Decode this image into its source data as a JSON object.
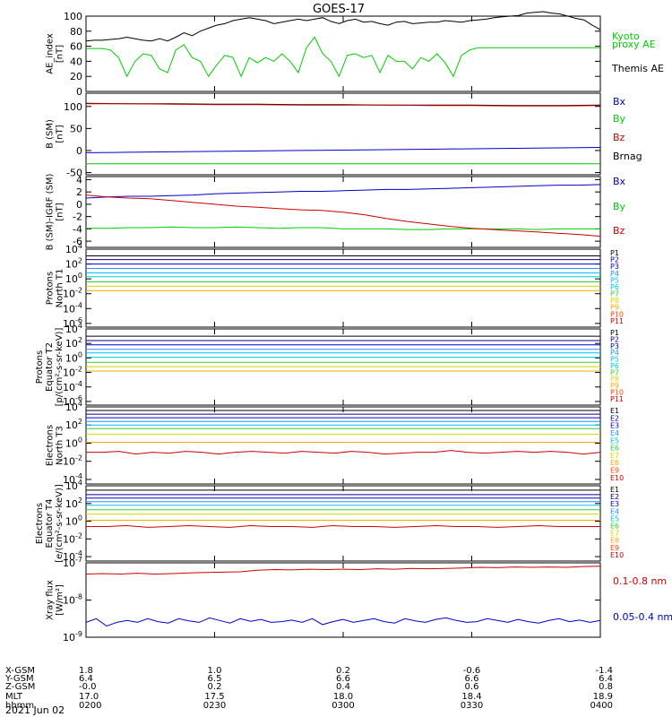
{
  "title": "GOES-17",
  "date": "2021 Jun 02",
  "colors": {
    "black": "#000000",
    "blue": "#0000cc",
    "green": "#00cc00",
    "red": "#cc0000",
    "x": [
      "#000000",
      "#00008b",
      "#0000cd",
      "#1e90ff",
      "#00bfff",
      "#00ced1",
      "#32cd32",
      "#d4d400",
      "#ffa500",
      "#ff4500",
      "#cc0000"
    ]
  },
  "chart_data": [
    {
      "type": "line",
      "panel": "ae",
      "ylabel": [
        "AE_index",
        "[nT]"
      ],
      "ylim": [
        0,
        100
      ],
      "yticks": [
        "100",
        "80",
        "60",
        "40",
        "20",
        "0"
      ],
      "ytick_values": [
        100,
        80,
        60,
        40,
        20,
        0
      ],
      "legend": [
        "Kyoto",
        "proxy AE",
        "Themis AE"
      ],
      "series": [
        {
          "name": "Kyoto proxy AE",
          "color": "green",
          "values": [
            57,
            57,
            57,
            55,
            45,
            20,
            40,
            50,
            48,
            30,
            25,
            55,
            62,
            45,
            40,
            20,
            35,
            48,
            45,
            20,
            45,
            38,
            45,
            40,
            50,
            40,
            25,
            58,
            72,
            50,
            40,
            20,
            48,
            50,
            45,
            48,
            25,
            48,
            40,
            40,
            30,
            45,
            40,
            50,
            38,
            20,
            48,
            55,
            58,
            58,
            58,
            58,
            58,
            58,
            58,
            58,
            58,
            58,
            58,
            58,
            58,
            58,
            58,
            58
          ]
        },
        {
          "name": "Themis AE",
          "color": "black",
          "values": [
            67,
            68,
            68,
            69,
            70,
            72,
            70,
            68,
            67,
            70,
            67,
            72,
            78,
            74,
            80,
            84,
            88,
            90,
            94,
            96,
            98,
            96,
            94,
            90,
            92,
            94,
            96,
            94,
            96,
            98,
            93,
            90,
            94,
            96,
            92,
            93,
            90,
            88,
            92,
            93,
            90,
            91,
            92,
            92,
            94,
            93,
            92,
            94,
            95,
            96,
            98,
            99,
            100,
            101,
            104,
            105,
            106,
            104,
            103,
            100,
            97,
            95,
            88,
            82
          ]
        }
      ]
    },
    {
      "type": "line",
      "panel": "b",
      "ylabel": [
        "B (SM)",
        "[nT]"
      ],
      "ylim": [
        -55,
        130
      ],
      "yticks": [
        "100",
        "50",
        "0",
        "-50"
      ],
      "ytick_values": [
        100,
        50,
        0,
        -50
      ],
      "legend": [
        "Bx",
        "By",
        "Bz",
        "Brnag"
      ],
      "series": [
        {
          "name": "Bmag",
          "color": "black",
          "values": [
            107,
            106,
            106,
            105,
            105,
            104,
            104,
            103,
            103,
            103,
            102,
            102,
            103
          ]
        },
        {
          "name": "Bz",
          "color": "red",
          "values": [
            106,
            106,
            105,
            104,
            104,
            103,
            103,
            103,
            102,
            102,
            101,
            101,
            102
          ]
        },
        {
          "name": "Bx",
          "color": "blue",
          "values": [
            -5,
            -4,
            -3,
            -2,
            -1,
            0,
            1,
            2,
            3,
            4,
            5,
            6,
            7
          ]
        },
        {
          "name": "By",
          "color": "green",
          "values": [
            -30,
            -30,
            -30,
            -30,
            -30,
            -30,
            -30,
            -30,
            -30,
            -30,
            -30,
            -30,
            -30
          ]
        }
      ]
    },
    {
      "type": "line",
      "panel": "db",
      "ylabel": [
        "B (SM)-IGRF (SM)",
        "[nT]"
      ],
      "ylim": [
        -7,
        4.5
      ],
      "yticks": [
        "4",
        "2",
        "0",
        "-2",
        "-4",
        "-6"
      ],
      "ytick_values": [
        4,
        2,
        0,
        -2,
        -4,
        -6
      ],
      "legend": [
        "Bx",
        "By",
        "Bz"
      ],
      "series": [
        {
          "name": "Bx",
          "color": "blue",
          "values": [
            1.0,
            1.2,
            1.3,
            1.3,
            1.4,
            1.5,
            1.7,
            1.8,
            1.9,
            2.0,
            2.1,
            2.1,
            2.2,
            2.3,
            2.4,
            2.4,
            2.5,
            2.6,
            2.7,
            2.8,
            2.9,
            3.0,
            3.1,
            3.1,
            3.2
          ]
        },
        {
          "name": "By",
          "color": "green",
          "values": [
            -3.9,
            -3.9,
            -3.8,
            -3.8,
            -3.7,
            -3.8,
            -3.8,
            -3.7,
            -3.8,
            -3.9,
            -3.8,
            -3.8,
            -4.0,
            -4.0,
            -4.0,
            -4.1,
            -4.1,
            -4.0,
            -4.0,
            -4.0,
            -4.0,
            -4.1,
            -4.0,
            -4.0,
            -4.0
          ]
        },
        {
          "name": "Bz",
          "color": "red",
          "values": [
            1.5,
            1.2,
            1.0,
            0.9,
            0.6,
            0.3,
            0.0,
            -0.3,
            -0.5,
            -0.7,
            -0.9,
            -1.0,
            -1.3,
            -1.7,
            -2.3,
            -2.8,
            -3.2,
            -3.6,
            -3.9,
            -4.1,
            -4.3,
            -4.5,
            -4.7,
            -4.9,
            -5.2
          ]
        }
      ]
    },
    {
      "type": "line",
      "panel": "pn",
      "ylabel": [
        "Protons",
        "North T1"
      ],
      "ylim": [
        -6.5,
        4
      ],
      "yticks_base": "10",
      "yticks_exp": [
        "4",
        "2",
        "0",
        "-2",
        "-4",
        "-6"
      ],
      "ytick_values": [
        4,
        2,
        0,
        -2,
        -4,
        -6
      ],
      "log": true,
      "legend": [
        "P1",
        "P2",
        "P3",
        "P4",
        "P5",
        "P6",
        "P7",
        "P8",
        "P9",
        "P10",
        "P11"
      ],
      "series": [
        {
          "name": "P1",
          "color_index": 0,
          "values": [
            3.1
          ]
        },
        {
          "name": "P2",
          "color_index": 1,
          "values": [
            2.6
          ]
        },
        {
          "name": "P3",
          "color_index": 2,
          "values": [
            2.0
          ]
        },
        {
          "name": "P4",
          "color_index": 3,
          "values": [
            1.4
          ]
        },
        {
          "name": "P5",
          "color_index": 4,
          "values": [
            0.8
          ]
        },
        {
          "name": "P6",
          "color_index": 5,
          "values": [
            0.3
          ]
        },
        {
          "name": "P7",
          "color_index": 6,
          "values": [
            -0.4
          ]
        },
        {
          "name": "P8",
          "color_index": 7,
          "values": [
            -1.0
          ]
        },
        {
          "name": "P9",
          "color_index": 8,
          "values": [
            -1.6
          ]
        }
      ]
    },
    {
      "type": "line",
      "panel": "pe",
      "ylabel": [
        "Protons",
        "Equator T2",
        "[p/(cm²-s-sr-keV)]"
      ],
      "ylim": [
        -6.5,
        4
      ],
      "yticks_base": "10",
      "yticks_exp": [
        "4",
        "2",
        "0",
        "-2",
        "-4",
        "-6"
      ],
      "ytick_values": [
        4,
        2,
        0,
        -2,
        -4,
        -6
      ],
      "log": true,
      "legend": [
        "P1",
        "P2",
        "P3",
        "P4",
        "P5",
        "P6",
        "P7",
        "P8",
        "P9",
        "P10",
        "P11"
      ],
      "series": [
        {
          "name": "P1",
          "color_index": 0,
          "values": [
            3.0
          ]
        },
        {
          "name": "P2",
          "color_index": 1,
          "values": [
            2.4
          ]
        },
        {
          "name": "P3",
          "color_index": 2,
          "values": [
            1.8
          ]
        },
        {
          "name": "P4",
          "color_index": 3,
          "values": [
            1.2
          ]
        },
        {
          "name": "P5",
          "color_index": 4,
          "values": [
            0.7
          ]
        },
        {
          "name": "P6",
          "color_index": 5,
          "values": [
            0.1
          ]
        },
        {
          "name": "P7",
          "color_index": 6,
          "values": [
            -0.6
          ]
        },
        {
          "name": "P8",
          "color_index": 7,
          "values": [
            -1.2
          ]
        },
        {
          "name": "P9",
          "color_index": 8,
          "values": [
            -1.8
          ]
        }
      ]
    },
    {
      "type": "line",
      "panel": "en",
      "ylabel": [
        "Electrons",
        "North T3"
      ],
      "ylim": [
        -4.5,
        4
      ],
      "yticks_base": "10",
      "yticks_exp": [
        "4",
        "2",
        "0",
        "-2",
        "-4"
      ],
      "ytick_values": [
        4,
        2,
        0,
        -2,
        -4
      ],
      "log": true,
      "legend": [
        "E1",
        "E2",
        "E3",
        "E4",
        "E5",
        "E6",
        "E7",
        "E8",
        "E9",
        "E10"
      ],
      "series": [
        {
          "name": "E1",
          "color_index": 0,
          "values": [
            3.6
          ]
        },
        {
          "name": "E2",
          "color_index": 1,
          "values": [
            3.2
          ]
        },
        {
          "name": "E3",
          "color_index": 2,
          "values": [
            2.8
          ]
        },
        {
          "name": "E4",
          "color_index": 3,
          "values": [
            2.4
          ]
        },
        {
          "name": "E5",
          "color_index": 4,
          "values": [
            2.0
          ]
        },
        {
          "name": "E6",
          "color_index": 6,
          "values": [
            1.6
          ]
        },
        {
          "name": "E7",
          "color_index": 7,
          "values": [
            1.0
          ]
        },
        {
          "name": "E8",
          "color_index": 8,
          "values": [
            0.1
          ]
        },
        {
          "name": "E9",
          "color_index": 10,
          "values": [
            -1.0,
            -1.0,
            -0.9,
            -1.2,
            -1.0,
            -1.1,
            -0.9,
            -1.0,
            -1.2,
            -1.0,
            -0.9,
            -1.0,
            -1.1,
            -0.9,
            -1.0,
            -1.1,
            -0.9,
            -1.0,
            -1.2,
            -1.1,
            -1.0,
            -1.0,
            -0.8,
            -1.0,
            -1.1,
            -1.0,
            -0.9,
            -1.0,
            -0.9,
            -1.0,
            -1.2,
            -1.0
          ]
        }
      ]
    },
    {
      "type": "line",
      "panel": "ee",
      "ylabel": [
        "Electrons",
        "Equator T4",
        "[e/(cm²-s-sr-keV)]"
      ],
      "ylim": [
        -4.5,
        4
      ],
      "yticks_base": "10",
      "yticks_exp": [
        "4",
        "2",
        "0",
        "-2",
        "-4"
      ],
      "ytick_values": [
        4,
        2,
        0,
        -2,
        -4
      ],
      "log": true,
      "legend": [
        "E1",
        "E2",
        "E3",
        "E4",
        "E5",
        "E6",
        "E7",
        "E8",
        "E9",
        "E10"
      ],
      "series": [
        {
          "name": "E1",
          "color_index": 0,
          "values": [
            3.5
          ]
        },
        {
          "name": "E2",
          "color_index": 1,
          "values": [
            3.0
          ]
        },
        {
          "name": "E3",
          "color_index": 2,
          "values": [
            2.6
          ]
        },
        {
          "name": "E4",
          "color_index": 3,
          "values": [
            2.2
          ]
        },
        {
          "name": "E5",
          "color_index": 4,
          "values": [
            1.8
          ]
        },
        {
          "name": "E6",
          "color_index": 6,
          "values": [
            1.3
          ]
        },
        {
          "name": "E7",
          "color_index": 7,
          "values": [
            0.8
          ]
        },
        {
          "name": "E8",
          "color_index": 8,
          "values": [
            0.1
          ]
        },
        {
          "name": "E9",
          "color_index": 10,
          "values": [
            -0.6,
            -0.6,
            -0.5,
            -0.7,
            -0.6,
            -0.5,
            -0.6,
            -0.7,
            -0.5,
            -0.6,
            -0.6,
            -0.7,
            -0.5,
            -0.6,
            -0.6,
            -0.7,
            -0.6,
            -0.5,
            -0.6,
            -0.6,
            -0.7,
            -0.6,
            -0.5,
            -0.6,
            -0.6,
            -0.6
          ]
        }
      ]
    },
    {
      "type": "line",
      "panel": "xr",
      "ylabel": [
        "Xray flux",
        "[W/m²]"
      ],
      "ylim": [
        -9,
        -7
      ],
      "yticks_base": "10",
      "yticks_exp": [
        "-7",
        "-8",
        "-9"
      ],
      "ytick_values": [
        -7,
        -8,
        -9
      ],
      "log": true,
      "legend": [
        "0.1-0.8 nm",
        "0.05-0.4 nm"
      ],
      "series": [
        {
          "name": "0.1-0.8 nm",
          "color": "red",
          "values": [
            -7.3,
            -7.29,
            -7.3,
            -7.28,
            -7.3,
            -7.29,
            -7.27,
            -7.26,
            -7.25,
            -7.24,
            -7.2,
            -7.18,
            -7.19,
            -7.17,
            -7.18,
            -7.17,
            -7.18,
            -7.16,
            -7.17,
            -7.15,
            -7.16,
            -7.15,
            -7.14,
            -7.12,
            -7.13,
            -7.11,
            -7.12,
            -7.11,
            -7.12,
            -7.1,
            -7.09
          ]
        },
        {
          "name": "0.05-0.4 nm",
          "color": "blue",
          "values": [
            -8.6,
            -8.5,
            -8.7,
            -8.6,
            -8.55,
            -8.6,
            -8.5,
            -8.58,
            -8.62,
            -8.5,
            -8.56,
            -8.6,
            -8.48,
            -8.55,
            -8.62,
            -8.5,
            -8.57,
            -8.52,
            -8.6,
            -8.58,
            -8.54,
            -8.6,
            -8.5,
            -8.66,
            -8.58,
            -8.52,
            -8.6,
            -8.55,
            -8.5,
            -8.58,
            -8.62,
            -8.5,
            -8.56,
            -8.6,
            -8.52,
            -8.48,
            -8.55,
            -8.6,
            -8.58,
            -8.5,
            -8.55,
            -8.6,
            -8.52,
            -8.58,
            -8.62,
            -8.55,
            -8.5,
            -8.58,
            -8.54,
            -8.6,
            -8.55
          ]
        }
      ]
    }
  ],
  "x_axis": {
    "row_labels": [
      "X-GSM",
      "Y-GSM",
      "Z-GSM",
      "MLT",
      "hhmm"
    ],
    "columns": [
      [
        "1.8",
        "6.4",
        "-0.0",
        "17.0",
        "0200"
      ],
      [
        "1.0",
        "6.5",
        "0.2",
        "17.5",
        "0230"
      ],
      [
        "0.2",
        "6.6",
        "0.4",
        "18.0",
        "0300"
      ],
      [
        "-0.6",
        "6.6",
        "0.6",
        "18.4",
        "0330"
      ],
      [
        "-1.4",
        "6.4",
        "0.8",
        "18.9",
        "0400"
      ]
    ]
  }
}
